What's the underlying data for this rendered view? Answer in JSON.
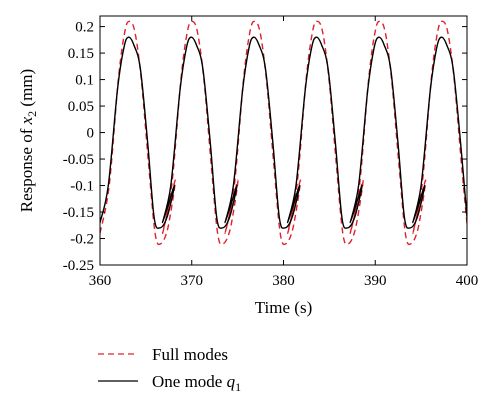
{
  "chart_data": {
    "type": "line",
    "title": "",
    "xlabel": "Time (s)",
    "ylabel": {
      "prefix": "Response of ",
      "var": "x",
      "sub": "2",
      "suffix": " (mm)"
    },
    "xlim": [
      360,
      400
    ],
    "ylim": [
      -0.25,
      0.22
    ],
    "xticks": [
      360,
      370,
      380,
      390,
      400
    ],
    "yticks": [
      -0.25,
      -0.2,
      -0.15,
      -0.1,
      -0.05,
      0,
      0.05,
      0.1,
      0.15,
      0.2
    ],
    "grid": false,
    "legend": "below",
    "period_s": 6.82,
    "series": [
      {
        "name": "Full modes",
        "color": "#e0202a",
        "dash": "dashed",
        "x": [
          360.0,
          361.0,
          362.0,
          362.7,
          363.2,
          363.8,
          364.5,
          365.3,
          366.0,
          366.6,
          367.4,
          368.2
        ],
        "y": [
          -0.19,
          -0.1,
          0.1,
          0.19,
          0.21,
          0.19,
          0.1,
          -0.06,
          -0.19,
          -0.21,
          -0.18,
          -0.09
        ]
      },
      {
        "name": {
          "text": "One mode ",
          "var": "q",
          "sub": "1"
        },
        "color": "#000000",
        "dash": "solid",
        "x": [
          360.0,
          360.9,
          361.9,
          362.6,
          363.1,
          363.7,
          364.4,
          365.2,
          365.9,
          366.5,
          367.3,
          368.1
        ],
        "y": [
          -0.17,
          -0.1,
          0.08,
          0.16,
          0.18,
          0.165,
          0.12,
          -0.02,
          -0.16,
          -0.18,
          -0.16,
          -0.1
        ]
      }
    ]
  }
}
